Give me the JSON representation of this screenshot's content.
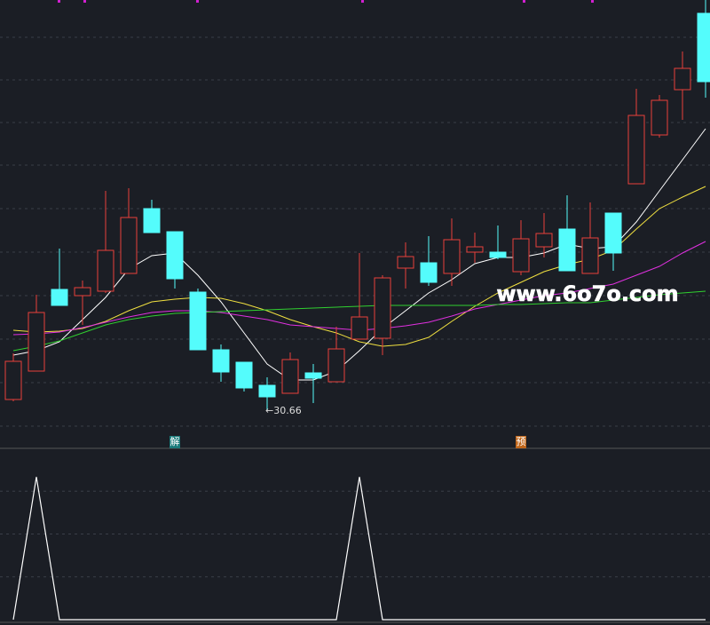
{
  "chart_data": [
    {
      "type": "candlestick",
      "categories": [
        null,
        null,
        null,
        null,
        null,
        null,
        null,
        null,
        null,
        null,
        null,
        null,
        null,
        null,
        null,
        null,
        null,
        null,
        null,
        null,
        null,
        null,
        null,
        null,
        null,
        null,
        null,
        null,
        null,
        null,
        null
      ],
      "open": [
        31.14,
        32.42,
        36.1,
        35.82,
        36.02,
        36.82,
        39.74,
        38.7,
        35.98,
        33.38,
        32.82,
        31.78,
        31.42,
        32.34,
        31.94,
        33.86,
        33.9,
        37.06,
        37.3,
        36.82,
        37.78,
        37.78,
        36.9,
        38.02,
        38.82,
        36.82,
        39.54,
        40.86,
        43.06,
        45.1,
        48.54
      ],
      "high": [
        33.22,
        35.86,
        37.94,
        36.5,
        40.54,
        40.66,
        40.14,
        38.7,
        36.14,
        33.62,
        32.82,
        32.14,
        33.26,
        32.74,
        34.42,
        37.74,
        36.74,
        38.22,
        38.5,
        39.3,
        38.66,
        38.98,
        39.22,
        39.54,
        40.34,
        40.02,
        39.54,
        45.14,
        44.86,
        46.82,
        49.14
      ],
      "low": [
        31.06,
        32.42,
        35.38,
        34.5,
        35.94,
        36.82,
        38.66,
        36.14,
        33.38,
        31.94,
        31.5,
        30.66,
        31.42,
        30.98,
        31.94,
        33.86,
        33.14,
        36.14,
        36.26,
        36.26,
        37.3,
        37.46,
        36.74,
        37.54,
        36.94,
        36.82,
        36.94,
        40.86,
        42.94,
        43.74,
        44.74
      ],
      "close": [
        32.86,
        35.06,
        35.38,
        36.18,
        37.86,
        39.34,
        38.66,
        36.58,
        33.38,
        32.38,
        31.66,
        31.26,
        32.94,
        32.1,
        33.42,
        34.86,
        36.62,
        37.58,
        36.42,
        38.34,
        38.02,
        37.54,
        38.38,
        38.62,
        36.94,
        38.42,
        37.74,
        43.94,
        44.62,
        46.06,
        45.46
      ],
      "up_color": "#e8403a",
      "down_color": "#54fcfc",
      "series": [
        {
          "color": "#ffffff",
          "values": [
            33.14,
            33.34,
            33.74,
            34.74,
            35.74,
            37.02,
            37.62,
            37.74,
            36.74,
            35.54,
            34.14,
            32.74,
            32.02,
            32.02,
            32.42,
            33.34,
            34.34,
            35.14,
            35.94,
            36.54,
            37.26,
            37.54,
            37.54,
            37.74,
            38.14,
            37.94,
            38.02,
            39.14,
            40.54,
            41.94,
            43.34
          ]
        },
        {
          "color": "#f0e040",
          "values": [
            34.26,
            34.18,
            34.22,
            34.34,
            34.66,
            35.14,
            35.54,
            35.66,
            35.74,
            35.7,
            35.46,
            35.14,
            34.74,
            34.42,
            34.14,
            33.74,
            33.54,
            33.62,
            33.94,
            34.66,
            35.34,
            35.94,
            36.42,
            36.9,
            37.22,
            37.46,
            37.86,
            38.82,
            39.74,
            40.26,
            40.74
          ]
        },
        {
          "color": "#e030e0",
          "values": [
            34.06,
            34.1,
            34.18,
            34.38,
            34.62,
            34.86,
            35.06,
            35.14,
            35.14,
            35.06,
            34.9,
            34.74,
            34.5,
            34.42,
            34.34,
            34.26,
            34.34,
            34.46,
            34.62,
            34.9,
            35.22,
            35.42,
            35.62,
            35.82,
            35.94,
            36.14,
            36.34,
            36.74,
            37.14,
            37.74,
            38.26
          ]
        },
        {
          "color": "#30d030",
          "values": [
            33.34,
            33.54,
            33.78,
            34.14,
            34.5,
            34.74,
            34.9,
            35.02,
            35.06,
            35.1,
            35.14,
            35.18,
            35.22,
            35.26,
            35.3,
            35.34,
            35.38,
            35.38,
            35.38,
            35.38,
            35.38,
            35.42,
            35.42,
            35.46,
            35.5,
            35.5,
            35.62,
            35.74,
            35.86,
            35.94,
            36.02
          ]
        }
      ],
      "annotation": {
        "x": 11,
        "value": 30.66,
        "label": "←30.66"
      },
      "signals": [
        null,
        null,
        null,
        null,
        null,
        null,
        null,
        "解",
        null,
        null,
        null,
        null,
        null,
        null,
        null,
        null,
        null,
        null,
        null,
        null,
        null,
        null,
        "预",
        null,
        null,
        null,
        null,
        null,
        null,
        null,
        null
      ],
      "signal_colors": [
        null,
        null,
        null,
        null,
        null,
        null,
        null,
        "#1a7a7a",
        null,
        null,
        null,
        null,
        null,
        null,
        null,
        null,
        null,
        null,
        null,
        null,
        null,
        null,
        "#c0661a",
        null,
        null,
        null,
        null,
        null,
        null,
        null,
        null
      ],
      "watermark": "www.6o7o.com",
      "ylim": [
        29.7,
        49.14
      ],
      "yticks": [
        47.46,
        45.54,
        43.62,
        41.7,
        39.74,
        37.78,
        35.82,
        33.86,
        31.9,
        29.94
      ],
      "grid": true
    },
    {
      "type": "line",
      "values": [
        0,
        1,
        0,
        0,
        0,
        0,
        0,
        0,
        0,
        0,
        0,
        0,
        0,
        0,
        0,
        1,
        0,
        0,
        0,
        0,
        0,
        0,
        0,
        0,
        0,
        0,
        0,
        0,
        0,
        0,
        0
      ],
      "color": "#ffffff",
      "ylim": [
        0,
        1.2
      ],
      "yticks": [
        0.3,
        0.6,
        0.9
      ],
      "grid": true
    }
  ]
}
